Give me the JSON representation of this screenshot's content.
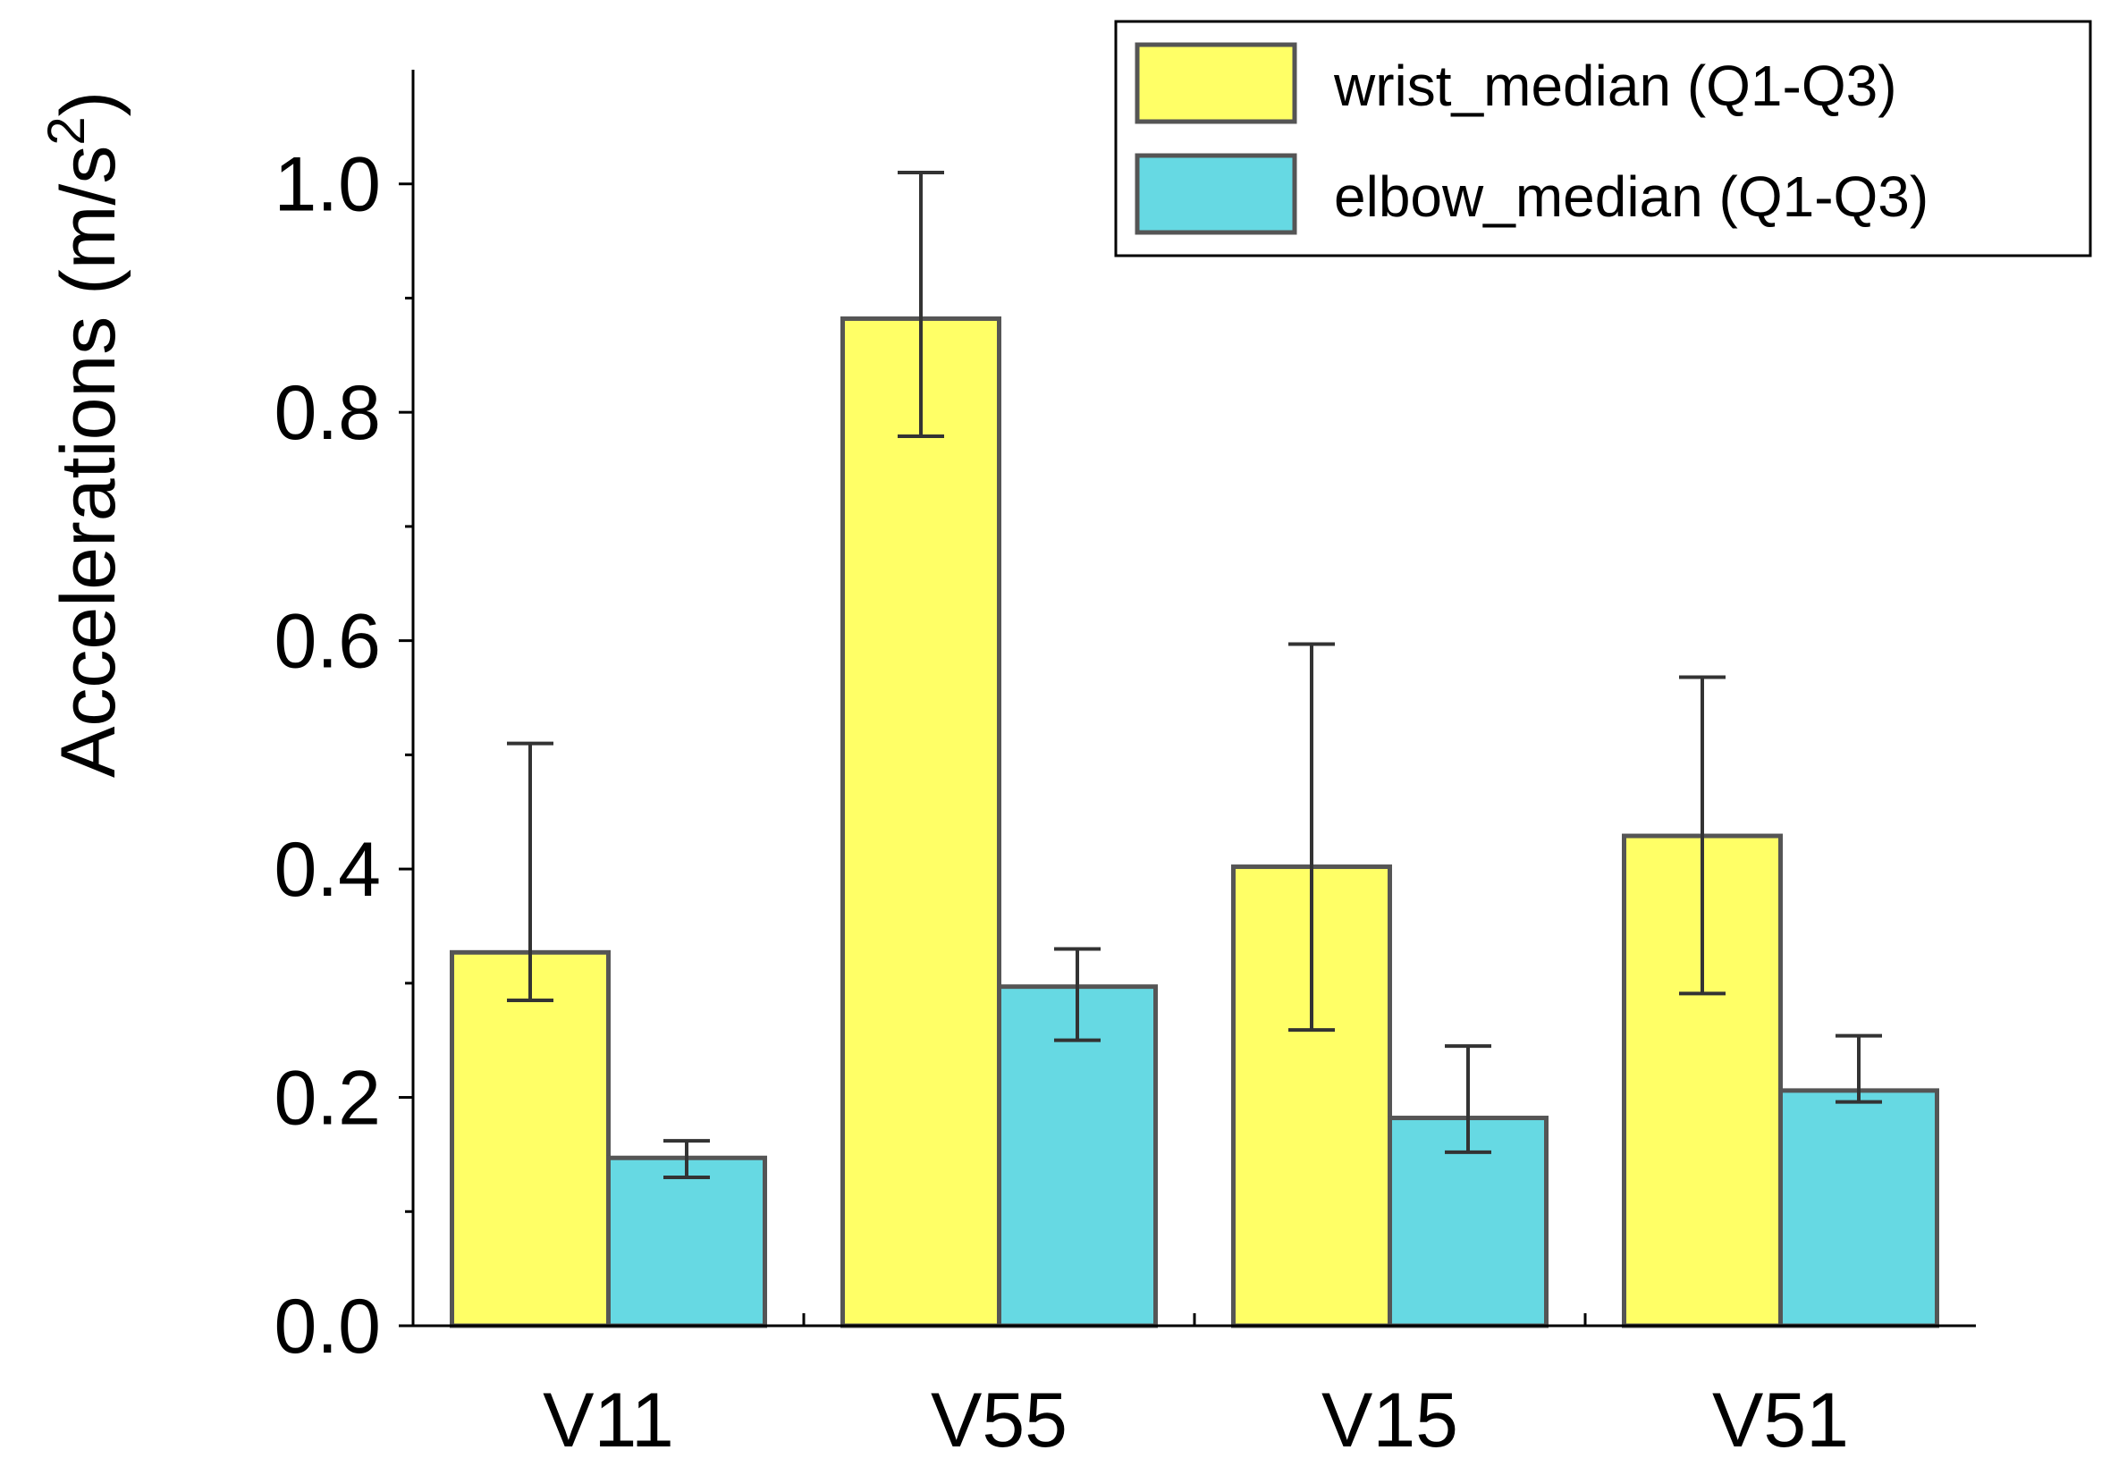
{
  "chart_data": {
    "type": "bar",
    "title": "",
    "xlabel": "",
    "ylabel": "Accelerations (m/s",
    "ylabel_superscript": "2",
    "ylabel_close": ")",
    "ylim": [
      0,
      1.1
    ],
    "yticks": [
      "0.0",
      "0.2",
      "0.4",
      "0.6",
      "0.8",
      "1.0"
    ],
    "ytick_values": [
      0,
      0.2,
      0.4,
      0.6,
      0.8,
      1.0
    ],
    "yminor_values": [
      0.1,
      0.3,
      0.5,
      0.7,
      0.9
    ],
    "categories": [
      "V11",
      "V55",
      "V15",
      "V51"
    ],
    "series": [
      {
        "name": "wrist_median (Q1-Q3)",
        "color": "#ffff66",
        "values": [
          0.327,
          0.882,
          0.402,
          0.429
        ],
        "q1": [
          0.285,
          0.779,
          0.259,
          0.291
        ],
        "q3": [
          0.51,
          1.01,
          0.597,
          0.568
        ]
      },
      {
        "name": "elbow_median (Q1-Q3)",
        "color": "#66d9e3",
        "values": [
          0.147,
          0.297,
          0.182,
          0.206
        ],
        "q1": [
          0.13,
          0.25,
          0.152,
          0.196
        ],
        "q3": [
          0.162,
          0.33,
          0.245,
          0.254
        ]
      }
    ],
    "legend_position": "top-right"
  }
}
